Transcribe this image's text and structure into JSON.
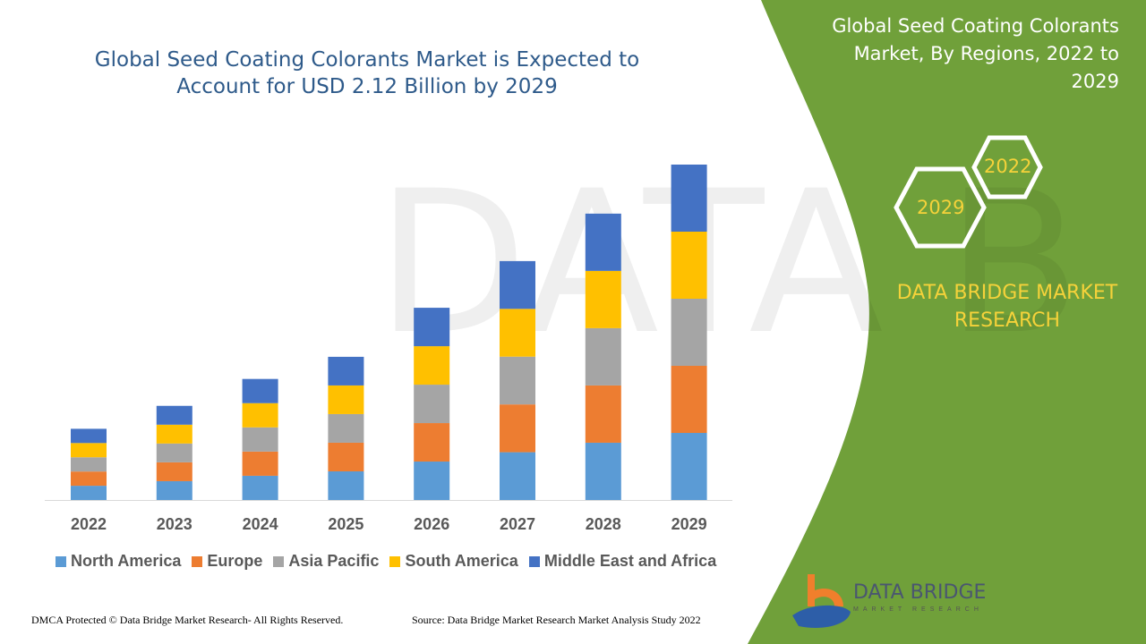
{
  "header": {
    "title": "Global Seed Coating Colorants Market is Expected to Account for USD 2.12 Billion by 2029"
  },
  "side_panel": {
    "title": "Global Seed Coating Colorants Market, By Regions, 2022 to 2029",
    "hex_start": "2022",
    "hex_end": "2029",
    "brand": "DATA BRIDGE MARKET RESEARCH",
    "panel_color": "#70a03a"
  },
  "logo": {
    "name": "DATA BRIDGE",
    "sub": "MARKET RESEARCH"
  },
  "footer": {
    "copyright": "DMCA Protected © Data Bridge Market Research- All Rights Reserved.",
    "source": "Source: Data Bridge Market Research Market Analysis Study 2022"
  },
  "chart_data": {
    "type": "bar",
    "stacked": true,
    "title": "Global Seed Coating Colorants Market is Expected to Account for USD 2.12 Billion by 2029",
    "categories": [
      "2022",
      "2023",
      "2024",
      "2025",
      "2026",
      "2027",
      "2028",
      "2029"
    ],
    "series": [
      {
        "name": "North America",
        "color": "#5b9bd5",
        "values": [
          0.09,
          0.119,
          0.153,
          0.181,
          0.243,
          0.302,
          0.362,
          0.424
        ]
      },
      {
        "name": "Europe",
        "color": "#ed7d31",
        "values": [
          0.09,
          0.119,
          0.153,
          0.181,
          0.243,
          0.302,
          0.362,
          0.424
        ]
      },
      {
        "name": "Asia Pacific",
        "color": "#a5a5a5",
        "values": [
          0.09,
          0.119,
          0.153,
          0.181,
          0.243,
          0.302,
          0.362,
          0.424
        ]
      },
      {
        "name": "South America",
        "color": "#ffc000",
        "values": [
          0.09,
          0.119,
          0.153,
          0.181,
          0.243,
          0.302,
          0.362,
          0.424
        ]
      },
      {
        "name": "Middle East and Africa",
        "color": "#4472c4",
        "values": [
          0.09,
          0.119,
          0.153,
          0.181,
          0.243,
          0.302,
          0.362,
          0.424
        ]
      }
    ],
    "ylim": [
      0,
      2.12
    ],
    "grid": false,
    "legend": "bottom"
  }
}
